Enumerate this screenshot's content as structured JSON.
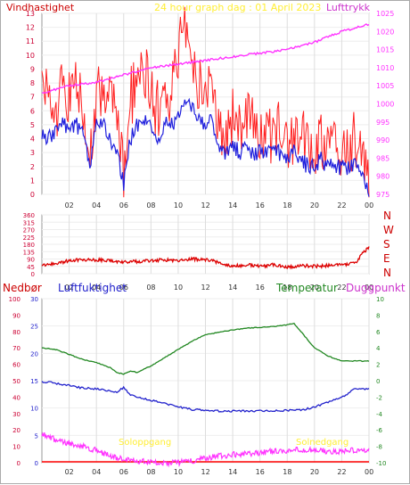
{
  "header": {
    "left_label": "Vindhastighet",
    "title": "24 hour graph dag : 01 April 2023",
    "right_label": "Lufttrykk"
  },
  "dir_labels": [
    "N",
    "W",
    "S",
    "E",
    "N"
  ],
  "bottom_labels": {
    "nedbor": "Nedbør",
    "luftfuktighet": "Luftfuktighet",
    "temperatur": "Temperatur",
    "duggpunkt": "Duggpunkt"
  },
  "annotations": {
    "sunrise": "Soloppgang",
    "sunset": "Solnedgang"
  },
  "colors": {
    "wind": "#ff2020",
    "wind_avg": "#2020dd",
    "pressure": "#ff33ff",
    "direction": "#dd0000",
    "temperature": "#228822",
    "humidity": "#2222cc",
    "dewpoint": "#ff33ff",
    "rain": "#ff0000",
    "axis_left": "#cc0033",
    "axis_pressure": "#ff33ff",
    "title": "#ffee33"
  },
  "chart_data": [
    {
      "type": "line",
      "x_ticks": [
        "02",
        "04",
        "06",
        "08",
        "10",
        "12",
        "14",
        "16",
        "18",
        "20",
        "22",
        "00"
      ],
      "yaxis_left": {
        "label": "Vindhastighet",
        "ticks": [
          0,
          1,
          2,
          3,
          4,
          5,
          6,
          7,
          8,
          9,
          10,
          11,
          12,
          13
        ],
        "ylim": [
          0,
          13
        ]
      },
      "yaxis_right": {
        "label": "Lufttrykk",
        "ticks": [
          975,
          980,
          985,
          990,
          995,
          1000,
          1005,
          1010,
          1015,
          1020,
          1025
        ],
        "ylim": [
          975,
          1025
        ]
      },
      "series": [
        {
          "name": "gust",
          "hours": [
            0,
            0.5,
            1,
            1.5,
            2,
            2.5,
            3,
            3.5,
            4,
            4.5,
            5,
            5.5,
            6,
            6.5,
            7,
            7.5,
            8,
            8.5,
            9,
            9.5,
            10,
            10.5,
            11,
            11.5,
            12,
            12.5,
            13,
            13.5,
            14,
            14.5,
            15,
            15.5,
            16,
            16.5,
            17,
            17.5,
            18,
            18.5,
            19,
            19.5,
            20,
            20.5,
            21,
            21.5,
            22,
            22.5,
            23,
            23.5,
            24
          ],
          "values": [
            7,
            9,
            5,
            8,
            7,
            9,
            6,
            3,
            7,
            8,
            7,
            6,
            1.5,
            7,
            8,
            9,
            7,
            6,
            8,
            7,
            10,
            13,
            9,
            8,
            6,
            9,
            5,
            4,
            6,
            5,
            6,
            5,
            4,
            5,
            4,
            5,
            4,
            4,
            4,
            3.5,
            3,
            4,
            3,
            4,
            3,
            3,
            4,
            2.5,
            0.5
          ]
        },
        {
          "name": "avg",
          "hours": [
            0,
            0.5,
            1,
            1.5,
            2,
            2.5,
            3,
            3.5,
            4,
            4.5,
            5,
            5.5,
            6,
            6.5,
            7,
            7.5,
            8,
            8.5,
            9,
            9.5,
            10,
            10.5,
            11,
            11.5,
            12,
            12.5,
            13,
            13.5,
            14,
            14.5,
            15,
            15.5,
            16,
            16.5,
            17,
            17.5,
            18,
            18.5,
            19,
            19.5,
            20,
            20.5,
            21,
            21.5,
            22,
            22.5,
            23,
            23.5,
            24
          ],
          "values": [
            4.5,
            4,
            4.5,
            5,
            5,
            5,
            4.5,
            2,
            5,
            5,
            4,
            3,
            0.8,
            4,
            5,
            5.5,
            5,
            4,
            5,
            5,
            5.5,
            6.5,
            6.5,
            5.5,
            4.5,
            5.5,
            3,
            3,
            3.5,
            3,
            3.5,
            3,
            3,
            3,
            3,
            3,
            2.5,
            3,
            2.5,
            2,
            2,
            2.5,
            2,
            2,
            2,
            2,
            2,
            1.5,
            0.3
          ]
        },
        {
          "name": "pressure",
          "hours": [
            0,
            2,
            4,
            6,
            8,
            10,
            12,
            14,
            16,
            18,
            20,
            22,
            24
          ],
          "values": [
            1003,
            1005,
            1006,
            1008,
            1010,
            1011,
            1012,
            1013,
            1014,
            1015,
            1017,
            1020,
            1022
          ]
        }
      ]
    },
    {
      "type": "line",
      "x_ticks": [
        "02",
        "04",
        "06",
        "08",
        "10",
        "12",
        "14",
        "16",
        "18",
        "20",
        "22",
        "00"
      ],
      "yaxis_left": {
        "ticks": [
          0,
          45,
          90,
          135,
          180,
          225,
          270,
          315,
          360
        ],
        "ylim": [
          0,
          360
        ]
      },
      "series": [
        {
          "name": "direction",
          "hours": [
            0,
            1,
            2,
            3,
            4,
            5,
            6,
            7,
            8,
            9,
            10,
            11,
            12,
            13,
            14,
            15,
            16,
            17,
            18,
            19,
            20,
            21,
            22,
            23,
            23.5,
            24
          ],
          "values": [
            50,
            60,
            80,
            85,
            85,
            80,
            70,
            75,
            80,
            85,
            80,
            90,
            85,
            70,
            45,
            55,
            45,
            55,
            40,
            50,
            45,
            50,
            55,
            65,
            120,
            160
          ]
        }
      ]
    },
    {
      "type": "line",
      "x_ticks": [
        "02",
        "04",
        "06",
        "08",
        "10",
        "12",
        "14",
        "16",
        "18",
        "20",
        "22",
        "00"
      ],
      "yaxis_nedbor": {
        "label": "Nedbør",
        "ticks": [
          0,
          10,
          20,
          30,
          40,
          50,
          60,
          70,
          80,
          90,
          100
        ],
        "ylim": [
          0,
          100
        ]
      },
      "yaxis_humidity": {
        "label": "Luftfuktighet",
        "ticks": [
          0,
          5,
          10,
          15,
          20,
          25,
          30
        ],
        "ylim": [
          0,
          30
        ]
      },
      "yaxis_temp": {
        "label": "Temperatur",
        "ticks": [
          -10,
          -8,
          -6,
          -4,
          -2,
          0,
          2,
          4,
          6,
          8,
          10
        ],
        "ylim": [
          -10,
          10
        ]
      },
      "series": [
        {
          "name": "Temperatur",
          "hours": [
            0,
            1,
            2,
            3,
            4,
            5,
            5.5,
            6,
            6.5,
            7,
            8,
            9,
            10,
            11,
            12,
            13,
            14,
            15,
            16,
            17,
            18,
            18.5,
            19,
            20,
            21,
            22,
            23,
            24
          ],
          "values": [
            4,
            3.8,
            3.2,
            2.6,
            2.2,
            1.6,
            1.0,
            0.8,
            1.2,
            1.0,
            1.8,
            2.8,
            3.8,
            4.8,
            5.6,
            5.9,
            6.2,
            6.4,
            6.5,
            6.6,
            6.8,
            7.0,
            6.0,
            4.0,
            3.0,
            2.4,
            2.4,
            2.4
          ]
        },
        {
          "name": "Luftfuktighet",
          "hours": [
            0,
            1,
            2,
            3,
            4,
            5,
            5.5,
            6,
            6.5,
            7,
            8,
            9,
            10,
            11,
            12,
            13,
            14,
            15,
            16,
            17,
            18,
            19,
            20,
            21,
            22,
            23,
            24
          ],
          "values": [
            -0.1,
            -0.3,
            -0.6,
            -0.9,
            -1.0,
            -1.3,
            -1.4,
            -0.8,
            -1.8,
            -2.0,
            -2.4,
            -2.8,
            -3.2,
            -3.5,
            -3.6,
            -3.7,
            -3.7,
            -3.7,
            -3.7,
            -3.7,
            -3.6,
            -3.6,
            -3.2,
            -2.6,
            -2.0,
            -1.0,
            -1.0
          ]
        },
        {
          "name": "Duggpunkt",
          "hours": [
            0,
            1,
            2,
            3,
            4,
            5,
            6,
            7,
            8,
            9,
            10,
            11,
            12,
            13,
            14,
            15,
            16,
            17,
            18,
            19,
            20,
            21,
            22,
            23,
            24
          ],
          "values": [
            -6.5,
            -7.2,
            -7.6,
            -8.0,
            -8.5,
            -9.2,
            -9.6,
            -9.8,
            -9.9,
            -10,
            -10,
            -9.8,
            -9.4,
            -9.2,
            -9.0,
            -8.9,
            -8.8,
            -8.6,
            -8.5,
            -8.4,
            -8.5,
            -8.6,
            -8.6,
            -8.5,
            -8.5
          ]
        }
      ]
    }
  ]
}
